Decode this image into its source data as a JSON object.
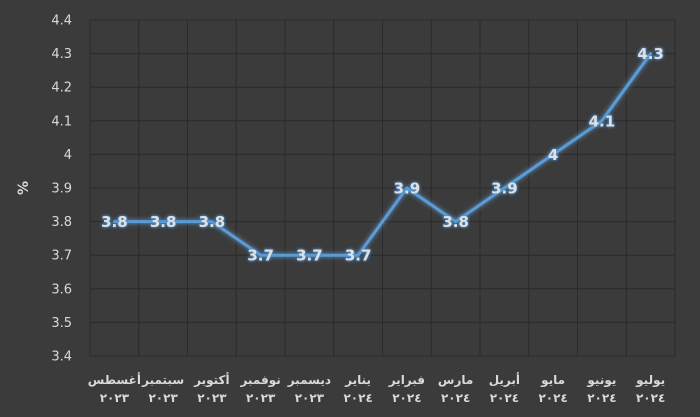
{
  "chart_data": {
    "type": "line",
    "title": "",
    "xlabel": "",
    "ylabel": "%",
    "ylim": [
      3.4,
      4.4
    ],
    "yticks": [
      "4.4",
      "4.3",
      "4.2",
      "4.1",
      "4",
      "3.9",
      "3.8",
      "3.7",
      "3.6",
      "3.5",
      "3.4"
    ],
    "categories": [
      {
        "month": "أغسطس",
        "year": "٢٠٢٣"
      },
      {
        "month": "سبتمبر",
        "year": "٢٠٢٣"
      },
      {
        "month": "أكتوبر",
        "year": "٢٠٢٣"
      },
      {
        "month": "نوفمبر",
        "year": "٢٠٢٣"
      },
      {
        "month": "ديسمبر",
        "year": "٢٠٢٣"
      },
      {
        "month": "يناير",
        "year": "٢٠٢٤"
      },
      {
        "month": "فبراير",
        "year": "٢٠٢٤"
      },
      {
        "month": "مارس",
        "year": "٢٠٢٤"
      },
      {
        "month": "أبريل",
        "year": "٢٠٢٤"
      },
      {
        "month": "مايو",
        "year": "٢٠٢٤"
      },
      {
        "month": "يونيو",
        "year": "٢٠٢٤"
      },
      {
        "month": "يوليو",
        "year": "٢٠٢٤"
      }
    ],
    "series": [
      {
        "values": [
          3.8,
          3.8,
          3.8,
          3.7,
          3.7,
          3.7,
          3.9,
          3.8,
          3.9,
          4,
          4.1,
          4.3
        ],
        "labels": [
          "3.8",
          "3.8",
          "3.8",
          "3.7",
          "3.7",
          "3.7",
          "3.9",
          "3.8",
          "3.9",
          "4",
          "4.1",
          "4.3"
        ],
        "color": "#5b9bd5"
      }
    ],
    "grid": true,
    "legend": "none"
  },
  "colors": {
    "background": "#3b3b3b",
    "gridline": "#2b2b2b",
    "text": "#d9d9d9",
    "line": "#5b9bd5"
  }
}
